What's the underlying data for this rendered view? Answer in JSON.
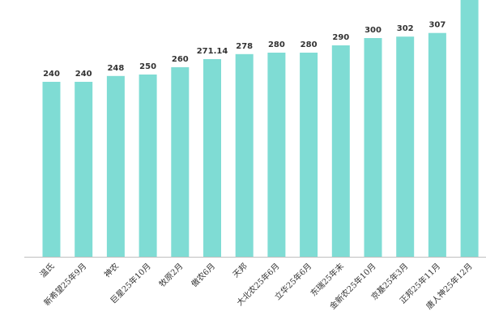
{
  "chart_data": {
    "type": "bar",
    "categories": [
      "温氏",
      "新希望25年9月",
      "神农",
      "巨星25年10月",
      "牧原2月",
      "傲农6月",
      "天邦",
      "大北农25年6月",
      "立华25年6月",
      "东瑞25年末",
      "金新农25年10月",
      "京基25年3月",
      "正邦25年11月",
      "唐人神25年12月"
    ],
    "values": [
      240,
      240,
      248,
      250,
      260,
      271.14,
      278,
      280,
      280,
      290,
      300,
      302,
      307,
      400
    ],
    "value_labels": [
      "240",
      "240",
      "248",
      "250",
      "260",
      "271.14",
      "278",
      "280",
      "280",
      "290",
      "300",
      "302",
      "307",
      ""
    ],
    "ylim": [
      0,
      400
    ],
    "bar_color": "#7fdcd4",
    "axis_color": "#bfbfbf",
    "text_color": "#333333",
    "title": "",
    "xlabel": "",
    "ylabel": ""
  }
}
